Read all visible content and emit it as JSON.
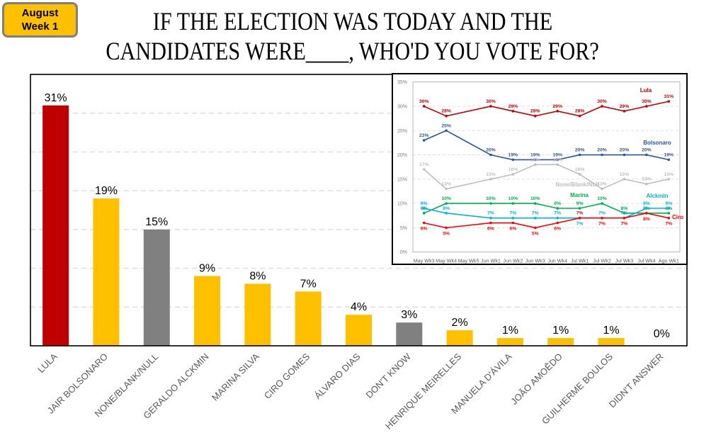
{
  "badge": {
    "line1": "August",
    "line2": "Week 1"
  },
  "title": {
    "line1": "IF THE ELECTION WAS TODAY AND THE",
    "line2": "CANDIDATES WERE____, WHO'D YOU VOTE FOR?"
  },
  "colors": {
    "lula_red": "#C00000",
    "candidate_yellow": "#FFC000",
    "neutral_gray": "#808080",
    "badge_fill": "#FFC000",
    "badge_border": "#7F7F7F"
  },
  "chart_data": [
    {
      "type": "bar",
      "title": "IF THE ELECTION WAS TODAY AND THE CANDIDATES WERE____, WHO'D YOU VOTE FOR?",
      "xlabel": "",
      "ylabel": "",
      "categories": [
        "LULA",
        "JAIR BOLSONARO",
        "NONE/BLANK/NULL",
        "GERALDO ALCKMIN",
        "MARINA SILVA",
        "CIRO GOMES",
        "ÁLVARO DIAS",
        "DON'T KNOW",
        "HENRIQUE MEIRELLES",
        "MANUELA D'ÁVILA",
        "JOÃO AMOÊDO",
        "GUILHERME BOULOS",
        "DIDN'T ANSWER"
      ],
      "values": [
        31,
        19,
        15,
        9,
        8,
        7,
        4,
        3,
        2,
        1,
        1,
        1,
        0
      ],
      "data_labels": [
        "31%",
        "19%",
        "15%",
        "9%",
        "8%",
        "7%",
        "4%",
        "3%",
        "2%",
        "1%",
        "1%",
        "1%",
        "0%"
      ],
      "bar_colors": [
        "#C00000",
        "#FFC000",
        "#808080",
        "#FFC000",
        "#FFC000",
        "#FFC000",
        "#FFC000",
        "#808080",
        "#FFC000",
        "#FFC000",
        "#FFC000",
        "#FFC000",
        "#FFC000"
      ],
      "ylim": [
        0,
        35
      ],
      "gridlines": [
        5,
        10,
        15,
        20,
        25,
        30
      ],
      "grid": true,
      "y_tick_labels_visible": false
    },
    {
      "type": "line",
      "title": "",
      "placement": "inset top-right",
      "categories": [
        "May Wk3",
        "May Wk4",
        "May Wk5",
        "Jun Wk1",
        "Jun Wk2",
        "Jun Wk3",
        "Jun Wk4",
        "Jul Wk1",
        "Jul Wk2",
        "Jul Wk3",
        "Jul Wk4",
        "Ago Wk1"
      ],
      "ylim": [
        0,
        35
      ],
      "yticks": [
        0,
        5,
        10,
        15,
        20,
        25,
        30,
        35
      ],
      "ytick_labels": [
        "0%",
        "5%",
        "10%",
        "15%",
        "20%",
        "25%",
        "30%",
        "35%"
      ],
      "grid": true,
      "series": [
        {
          "name": "Lula",
          "color": "#C00000",
          "values": [
            30,
            28,
            null,
            30,
            29,
            28,
            29,
            28,
            30,
            29,
            30,
            31
          ]
        },
        {
          "name": "Bolsonaro",
          "color": "#2F5597",
          "values": [
            23,
            25,
            null,
            20,
            19,
            19,
            19,
            20,
            20,
            20,
            20,
            19
          ]
        },
        {
          "name": "None/Blank/Null",
          "color": "#BFBFBF",
          "values": [
            17,
            13,
            null,
            15,
            16,
            18,
            18,
            16,
            13,
            15,
            14,
            15
          ]
        },
        {
          "name": "Marina",
          "color": "#00B050",
          "values": [
            8,
            10,
            null,
            10,
            10,
            10,
            9,
            9,
            10,
            8,
            8,
            8
          ]
        },
        {
          "name": "Alckmin",
          "color": "#00B0F0",
          "values": [
            9,
            8,
            null,
            7,
            7,
            7,
            7,
            7,
            7,
            7,
            9,
            9
          ]
        },
        {
          "name": "Ciro",
          "color": "#FF0000",
          "values": [
            6,
            5,
            null,
            6,
            6,
            5,
            6,
            7,
            7,
            7,
            8,
            7
          ]
        }
      ]
    }
  ]
}
